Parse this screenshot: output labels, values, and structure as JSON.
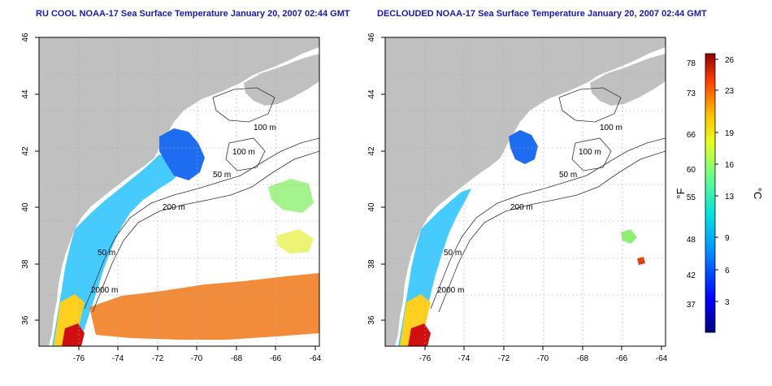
{
  "panels": [
    {
      "title": "RU COOL NOAA-17 Sea Surface Temperature January 20, 2007 02:44 GMT",
      "x_ticks": [
        "-76",
        "-74",
        "-72",
        "-70",
        "-68",
        "-66",
        "-64"
      ],
      "y_ticks": [
        "36",
        "38",
        "40",
        "42",
        "44",
        "46"
      ]
    },
    {
      "title": "DECLOUDED NOAA-17 Sea Surface Temperature January 20, 2007 02:44 GMT",
      "x_ticks": [
        "-76",
        "-74",
        "-72",
        "-70",
        "-68",
        "-66",
        "-64"
      ],
      "y_ticks": [
        "36",
        "38",
        "40",
        "42",
        "44",
        "46"
      ]
    }
  ],
  "contour_labels": [
    "100 m",
    "100 m",
    "50 m",
    "200 m",
    "50 m",
    "2000 m"
  ],
  "colorbar": {
    "unit_f": "°F",
    "unit_c": "°C",
    "f_ticks": [
      "78",
      "73",
      "66",
      "60",
      "55",
      "48",
      "42",
      "37"
    ],
    "c_ticks": [
      "26",
      "23",
      "19",
      "16",
      "13",
      "9",
      "6",
      "3"
    ]
  },
  "colors": {
    "land": "#c0c0c0",
    "ocean": "#ffffff",
    "title": "#1a1aa6"
  }
}
